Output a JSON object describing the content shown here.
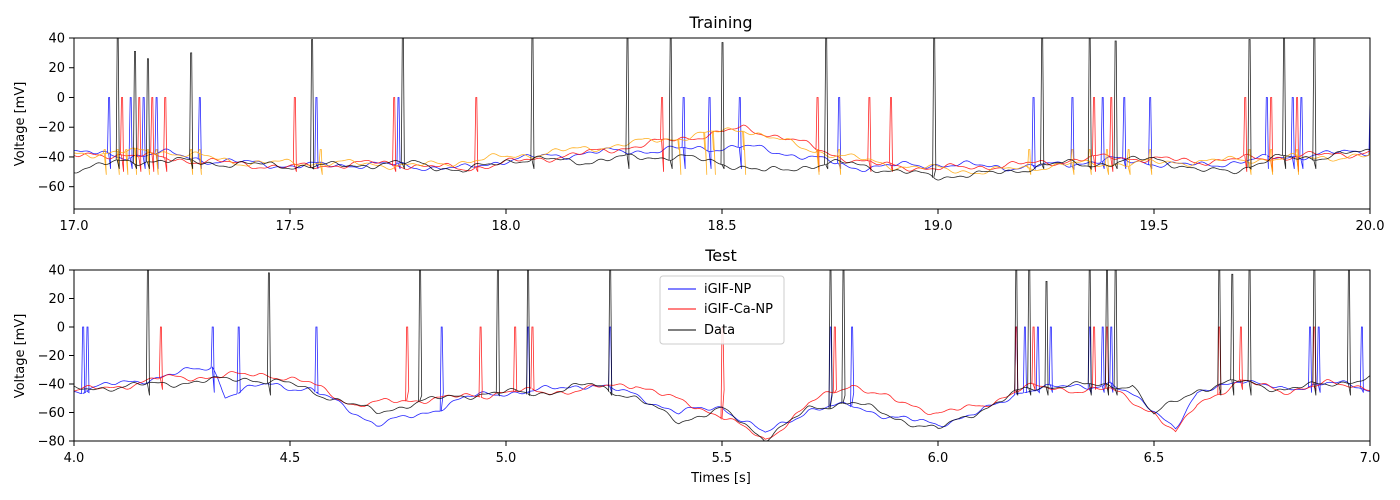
{
  "chart_data": [
    {
      "type": "line",
      "title": "Training",
      "xlabel": "",
      "ylabel": "Voltage [mV]",
      "xlim": [
        17.0,
        20.0
      ],
      "ylim": [
        -75,
        40
      ],
      "xticks": [
        17.0,
        17.5,
        18.0,
        18.5,
        19.0,
        19.5,
        20.0
      ],
      "xtick_labels": [
        "17.0",
        "17.5",
        "18.0",
        "18.5",
        "19.0",
        "19.5",
        "20.0"
      ],
      "yticks": [
        -60,
        -40,
        -20,
        0,
        20,
        40
      ],
      "ytick_labels": [
        "−60",
        "−40",
        "−20",
        "0",
        "20",
        "40"
      ],
      "grid": false,
      "series": [
        {
          "color": "#0000ff",
          "baseline": [
            [
              17.0,
              -36
            ],
            [
              17.1,
              -40
            ],
            [
              17.2,
              -37
            ],
            [
              17.3,
              -42
            ],
            [
              17.5,
              -46
            ],
            [
              17.7,
              -45
            ],
            [
              17.9,
              -48
            ],
            [
              18.0,
              -42
            ],
            [
              18.2,
              -37
            ],
            [
              18.4,
              -35
            ],
            [
              18.55,
              -33
            ],
            [
              18.7,
              -40
            ],
            [
              18.8,
              -47
            ],
            [
              19.0,
              -45
            ],
            [
              19.2,
              -47
            ],
            [
              19.4,
              -42
            ],
            [
              19.6,
              -46
            ],
            [
              19.8,
              -40
            ],
            [
              20.0,
              -36
            ]
          ],
          "spikes": [
            17.08,
            17.13,
            17.16,
            17.19,
            17.29,
            17.56,
            17.75,
            18.41,
            18.47,
            18.54,
            18.77,
            19.22,
            19.31,
            19.38,
            19.43,
            19.49,
            19.76,
            19.82,
            19.84,
            20.0
          ],
          "spike_peak": 0,
          "spike_trough": -48
        },
        {
          "color": "#ff0000",
          "baseline": [
            [
              17.0,
              -40
            ],
            [
              17.1,
              -38
            ],
            [
              17.3,
              -43
            ],
            [
              17.5,
              -47
            ],
            [
              17.7,
              -44
            ],
            [
              17.9,
              -48
            ],
            [
              18.0,
              -44
            ],
            [
              18.2,
              -37
            ],
            [
              18.4,
              -28
            ],
            [
              18.55,
              -21
            ],
            [
              18.65,
              -27
            ],
            [
              18.75,
              -38
            ],
            [
              18.85,
              -45
            ],
            [
              19.0,
              -48
            ],
            [
              19.2,
              -45
            ],
            [
              19.4,
              -40
            ],
            [
              19.6,
              -43
            ],
            [
              19.8,
              -40
            ],
            [
              20.0,
              -37
            ]
          ],
          "spikes": [
            17.11,
            17.15,
            17.18,
            17.21,
            17.51,
            17.74,
            17.93,
            18.36,
            18.72,
            18.84,
            18.89,
            19.36,
            19.4,
            19.71,
            19.77,
            19.83
          ],
          "spike_peak": 0,
          "spike_trough": -50
        },
        {
          "color": "#ffa500",
          "baseline": [
            [
              17.0,
              -38
            ],
            [
              17.2,
              -36
            ],
            [
              17.4,
              -44
            ],
            [
              17.6,
              -44
            ],
            [
              17.8,
              -46
            ],
            [
              18.0,
              -40
            ],
            [
              18.2,
              -34
            ],
            [
              18.4,
              -27
            ],
            [
              18.55,
              -21
            ],
            [
              18.7,
              -35
            ],
            [
              18.9,
              -46
            ],
            [
              19.1,
              -50
            ],
            [
              19.3,
              -45
            ],
            [
              19.5,
              -44
            ],
            [
              19.7,
              -42
            ],
            [
              19.9,
              -40
            ],
            [
              20.0,
              -40
            ]
          ],
          "spikes": [
            17.07,
            17.1,
            17.12,
            17.14,
            17.17,
            17.19,
            17.27,
            17.29,
            17.57,
            18.4,
            18.46,
            18.48,
            18.55,
            18.72,
            18.77,
            19.21,
            19.31,
            19.35,
            19.39,
            19.44,
            19.49,
            19.72,
            19.77,
            19.83,
            20.0
          ],
          "spike_peak": -35,
          "spike_trough": -52
        },
        {
          "color": "#000000",
          "baseline": [
            [
              17.0,
              -48
            ],
            [
              17.1,
              -44
            ],
            [
              17.2,
              -42
            ],
            [
              17.3,
              -44
            ],
            [
              17.4,
              -45
            ],
            [
              17.5,
              -46
            ],
            [
              17.6,
              -46
            ],
            [
              17.7,
              -45
            ],
            [
              17.8,
              -44
            ],
            [
              17.9,
              -50
            ],
            [
              18.0,
              -42
            ],
            [
              18.1,
              -42
            ],
            [
              18.2,
              -43
            ],
            [
              18.3,
              -40
            ],
            [
              18.4,
              -40
            ],
            [
              18.5,
              -44
            ],
            [
              18.6,
              -50
            ],
            [
              18.7,
              -46
            ],
            [
              18.8,
              -44
            ],
            [
              18.9,
              -50
            ],
            [
              19.0,
              -53
            ],
            [
              19.1,
              -52
            ],
            [
              19.2,
              -48
            ],
            [
              19.3,
              -44
            ],
            [
              19.4,
              -45
            ],
            [
              19.5,
              -40
            ],
            [
              19.6,
              -50
            ],
            [
              19.7,
              -48
            ],
            [
              19.8,
              -40
            ],
            [
              19.9,
              -40
            ],
            [
              20.0,
              -36
            ]
          ],
          "spikes": [
            17.1,
            17.14,
            17.17,
            17.27,
            17.55,
            17.76,
            18.06,
            18.28,
            18.38,
            18.5,
            18.74,
            18.99,
            19.24,
            19.35,
            19.41,
            19.72,
            19.8,
            19.87
          ],
          "spike_peaks": [
            40,
            31,
            26,
            30,
            39,
            40,
            40,
            40,
            40,
            37,
            40,
            40,
            40,
            40,
            38,
            39,
            40,
            40
          ],
          "spike_trough": -48
        }
      ]
    },
    {
      "type": "line",
      "title": "Test",
      "xlabel": "Times [s]",
      "ylabel": "Voltage [mV]",
      "xlim": [
        4.0,
        7.0
      ],
      "ylim": [
        -80,
        40
      ],
      "xticks": [
        4.0,
        4.5,
        5.0,
        5.5,
        6.0,
        6.5,
        7.0
      ],
      "xtick_labels": [
        "4.0",
        "4.5",
        "5.0",
        "5.5",
        "6.0",
        "6.5",
        "7.0"
      ],
      "yticks": [
        -80,
        -60,
        -40,
        -20,
        0,
        20,
        40
      ],
      "ytick_labels": [
        "−80",
        "−60",
        "−40",
        "−20",
        "0",
        "20",
        "40"
      ],
      "grid": false,
      "legend_position": "top-center",
      "series": [
        {
          "name": "iGIF-NP",
          "color": "#0000ff",
          "baseline": [
            [
              4.0,
              -45
            ],
            [
              4.1,
              -40
            ],
            [
              4.2,
              -35
            ],
            [
              4.3,
              -29
            ],
            [
              4.32,
              -27
            ],
            [
              4.35,
              -48
            ],
            [
              4.45,
              -40
            ],
            [
              4.55,
              -44
            ],
            [
              4.7,
              -68
            ],
            [
              4.8,
              -62
            ],
            [
              4.9,
              -50
            ],
            [
              5.0,
              -46
            ],
            [
              5.1,
              -44
            ],
            [
              5.2,
              -40
            ],
            [
              5.3,
              -48
            ],
            [
              5.4,
              -60
            ],
            [
              5.5,
              -56
            ],
            [
              5.6,
              -75
            ],
            [
              5.7,
              -58
            ],
            [
              5.8,
              -55
            ],
            [
              5.9,
              -64
            ],
            [
              6.0,
              -68
            ],
            [
              6.1,
              -60
            ],
            [
              6.2,
              -44
            ],
            [
              6.3,
              -42
            ],
            [
              6.4,
              -40
            ],
            [
              6.5,
              -58
            ],
            [
              6.55,
              -70
            ],
            [
              6.6,
              -48
            ],
            [
              6.7,
              -36
            ],
            [
              6.8,
              -45
            ],
            [
              6.9,
              -38
            ],
            [
              7.0,
              -45
            ]
          ],
          "spikes": [
            4.02,
            4.03,
            4.32,
            4.38,
            4.56,
            4.85,
            5.05,
            5.24,
            5.75,
            5.8,
            6.18,
            6.2,
            6.23,
            6.26,
            6.35,
            6.38,
            6.4,
            6.86,
            6.88,
            6.98
          ],
          "spike_peak": 0,
          "spike_trough": -46
        },
        {
          "name": "iGIF-Ca-NP",
          "color": "#ff0000",
          "baseline": [
            [
              4.0,
              -45
            ],
            [
              4.1,
              -42
            ],
            [
              4.2,
              -36
            ],
            [
              4.3,
              -35
            ],
            [
              4.45,
              -33
            ],
            [
              4.55,
              -40
            ],
            [
              4.65,
              -55
            ],
            [
              4.75,
              -52
            ],
            [
              4.85,
              -50
            ],
            [
              4.95,
              -48
            ],
            [
              5.0,
              -45
            ],
            [
              5.1,
              -46
            ],
            [
              5.2,
              -43
            ],
            [
              5.3,
              -40
            ],
            [
              5.4,
              -52
            ],
            [
              5.5,
              -62
            ],
            [
              5.6,
              -80
            ],
            [
              5.7,
              -54
            ],
            [
              5.8,
              -40
            ],
            [
              5.9,
              -52
            ],
            [
              6.0,
              -60
            ],
            [
              6.1,
              -56
            ],
            [
              6.2,
              -42
            ],
            [
              6.3,
              -44
            ],
            [
              6.4,
              -44
            ],
            [
              6.5,
              -60
            ],
            [
              6.55,
              -75
            ],
            [
              6.6,
              -54
            ],
            [
              6.7,
              -38
            ],
            [
              6.8,
              -45
            ],
            [
              6.9,
              -40
            ],
            [
              7.0,
              -42
            ]
          ],
          "spikes": [
            4.2,
            4.77,
            4.94,
            5.02,
            5.06,
            5.5,
            5.76,
            6.18,
            6.22,
            6.36,
            6.39,
            6.65,
            6.7,
            6.87
          ],
          "spike_peak": 0,
          "spike_trough": -44
        },
        {
          "name": "Data",
          "color": "#000000",
          "baseline": [
            [
              4.0,
              -44
            ],
            [
              4.1,
              -42
            ],
            [
              4.2,
              -40
            ],
            [
              4.3,
              -38
            ],
            [
              4.4,
              -36
            ],
            [
              4.5,
              -40
            ],
            [
              4.6,
              -50
            ],
            [
              4.7,
              -60
            ],
            [
              4.78,
              -54
            ],
            [
              4.85,
              -50
            ],
            [
              4.9,
              -48
            ],
            [
              5.0,
              -46
            ],
            [
              5.1,
              -46
            ],
            [
              5.2,
              -40
            ],
            [
              5.3,
              -50
            ],
            [
              5.4,
              -66
            ],
            [
              5.5,
              -58
            ],
            [
              5.6,
              -78
            ],
            [
              5.7,
              -58
            ],
            [
              5.8,
              -52
            ],
            [
              5.9,
              -64
            ],
            [
              6.0,
              -72
            ],
            [
              6.1,
              -58
            ],
            [
              6.2,
              -44
            ],
            [
              6.3,
              -40
            ],
            [
              6.4,
              -42
            ],
            [
              6.45,
              -40
            ],
            [
              6.5,
              -62
            ],
            [
              6.55,
              -52
            ],
            [
              6.6,
              -44
            ],
            [
              6.7,
              -38
            ],
            [
              6.8,
              -44
            ],
            [
              6.9,
              -40
            ],
            [
              7.0,
              -36
            ]
          ],
          "spikes": [
            4.17,
            4.45,
            4.8,
            4.98,
            5.05,
            5.24,
            5.75,
            5.78,
            6.18,
            6.21,
            6.25,
            6.35,
            6.39,
            6.41,
            6.65,
            6.68,
            6.72,
            6.87,
            6.95
          ],
          "spike_peaks": [
            40,
            38,
            40,
            40,
            40,
            40,
            40,
            40,
            40,
            40,
            32,
            40,
            40,
            40,
            40,
            37,
            40,
            40,
            40
          ],
          "spike_trough": -48
        }
      ]
    }
  ]
}
